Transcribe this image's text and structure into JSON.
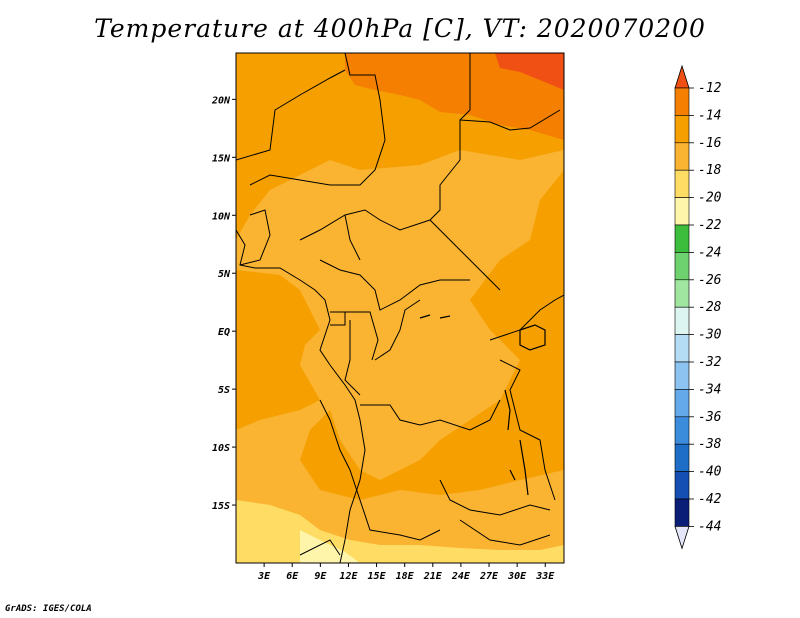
{
  "title": "Temperature at 400hPa [C], VT: 2020070200",
  "footer": "GrADS: IGES/COLA",
  "map": {
    "lon_range": [
      0,
      35
    ],
    "lat_range": [
      -20,
      24
    ],
    "lon_ticks": [
      "3E",
      "6E",
      "9E",
      "12E",
      "15E",
      "18E",
      "21E",
      "24E",
      "27E",
      "30E",
      "33E"
    ],
    "lat_ticks": [
      "20N",
      "15N",
      "10N",
      "5N",
      "EQ",
      "5S",
      "10S",
      "15S"
    ]
  },
  "colorbar": {
    "levels": [
      "-12",
      "-14",
      "-16",
      "-18",
      "-20",
      "-22",
      "-24",
      "-26",
      "-28",
      "-30",
      "-32",
      "-34",
      "-36",
      "-38",
      "-40",
      "-42",
      "-44"
    ],
    "colors": [
      "#f05014",
      "#f57f00",
      "#f5a000",
      "#fab432",
      "#ffdc64",
      "#fff5aa",
      "#3cbe3c",
      "#6ed26e",
      "#a0e6a0",
      "#dcf5f0",
      "#b4dcf5",
      "#8cc3f0",
      "#64aaeb",
      "#3c8cdc",
      "#1e6ec8",
      "#1450b4",
      "#0a1e78",
      "#e6e6fa"
    ]
  },
  "chart_data": {
    "type": "heatmap",
    "title": "Temperature at 400hPa [C], VT: 2020070200",
    "variable": "Temperature at 400hPa",
    "units": "C",
    "valid_time": "2020070200",
    "x_ticks": [
      "3E",
      "6E",
      "9E",
      "12E",
      "15E",
      "18E",
      "21E",
      "24E",
      "27E",
      "30E",
      "33E"
    ],
    "y_ticks": [
      "20N",
      "15N",
      "10N",
      "5N",
      "EQ",
      "5S",
      "10S",
      "15S"
    ],
    "contour_levels": [
      -12,
      -14,
      -16,
      -18,
      -20,
      -22,
      -24,
      -26,
      -28,
      -30,
      -32,
      -34,
      -36,
      -38,
      -40,
      -42,
      -44
    ],
    "regions": [
      {
        "area": "northern Libya/Egypt border (north of ~21N, 15E-21E)",
        "band": "-14 to -12"
      },
      {
        "area": "far north-east corner (north of ~22N, ~28E)",
        "band": "above -12"
      },
      {
        "area": "western Sahel and Gulf of Guinea coast",
        "band": "-16 to -14"
      },
      {
        "area": "Congo basin and central Africa interior",
        "band": "-18 to -16"
      },
      {
        "area": "East Africa / Lake Victoria region",
        "band": "-16 to -14"
      },
      {
        "area": "southern Angola and Zambia (south of ~15S)",
        "band": "-20 to -18"
      },
      {
        "area": "south-west corner (~18S-20S, 6E-12E)",
        "band": "-22 to -20"
      }
    ]
  }
}
